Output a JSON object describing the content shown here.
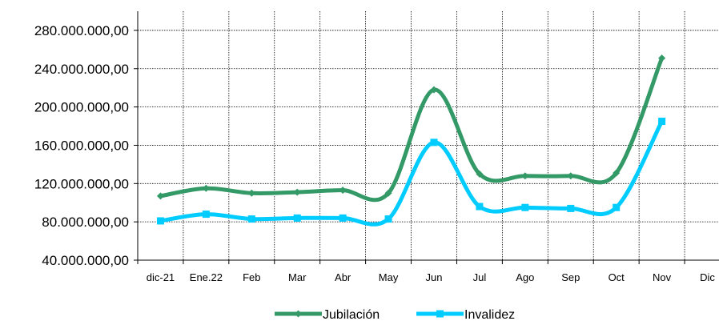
{
  "chart_data": {
    "type": "line",
    "title": "",
    "xlabel": "",
    "ylabel": "",
    "categories": [
      "dic-21",
      "Ene.22",
      "Feb",
      "Mar",
      "Abr",
      "May",
      "Jun",
      "Jul",
      "Ago",
      "Sep",
      "Oct",
      "Nov",
      "Dic"
    ],
    "y_ticks": [
      "40.000.000,00",
      "80.000.000,00",
      "120.000.000,00",
      "160.000.000,00",
      "200.000.000,00",
      "240.000.000,00",
      "280.000.000,00"
    ],
    "ylim": [
      40000000,
      300000000
    ],
    "grid": true,
    "legend_position": "bottom",
    "series": [
      {
        "name": "Jubilación",
        "color": "#339966",
        "marker": "diamond",
        "values": [
          107000000,
          115000000,
          110000000,
          111000000,
          113000000,
          110000000,
          218000000,
          130000000,
          128000000,
          128000000,
          131000000,
          251000000,
          null
        ]
      },
      {
        "name": "Invalidez",
        "color": "#00CCFF",
        "marker": "square",
        "values": [
          81000000,
          88000000,
          83000000,
          84000000,
          84000000,
          83000000,
          163000000,
          96000000,
          95000000,
          94000000,
          95000000,
          185000000,
          null
        ]
      }
    ]
  }
}
